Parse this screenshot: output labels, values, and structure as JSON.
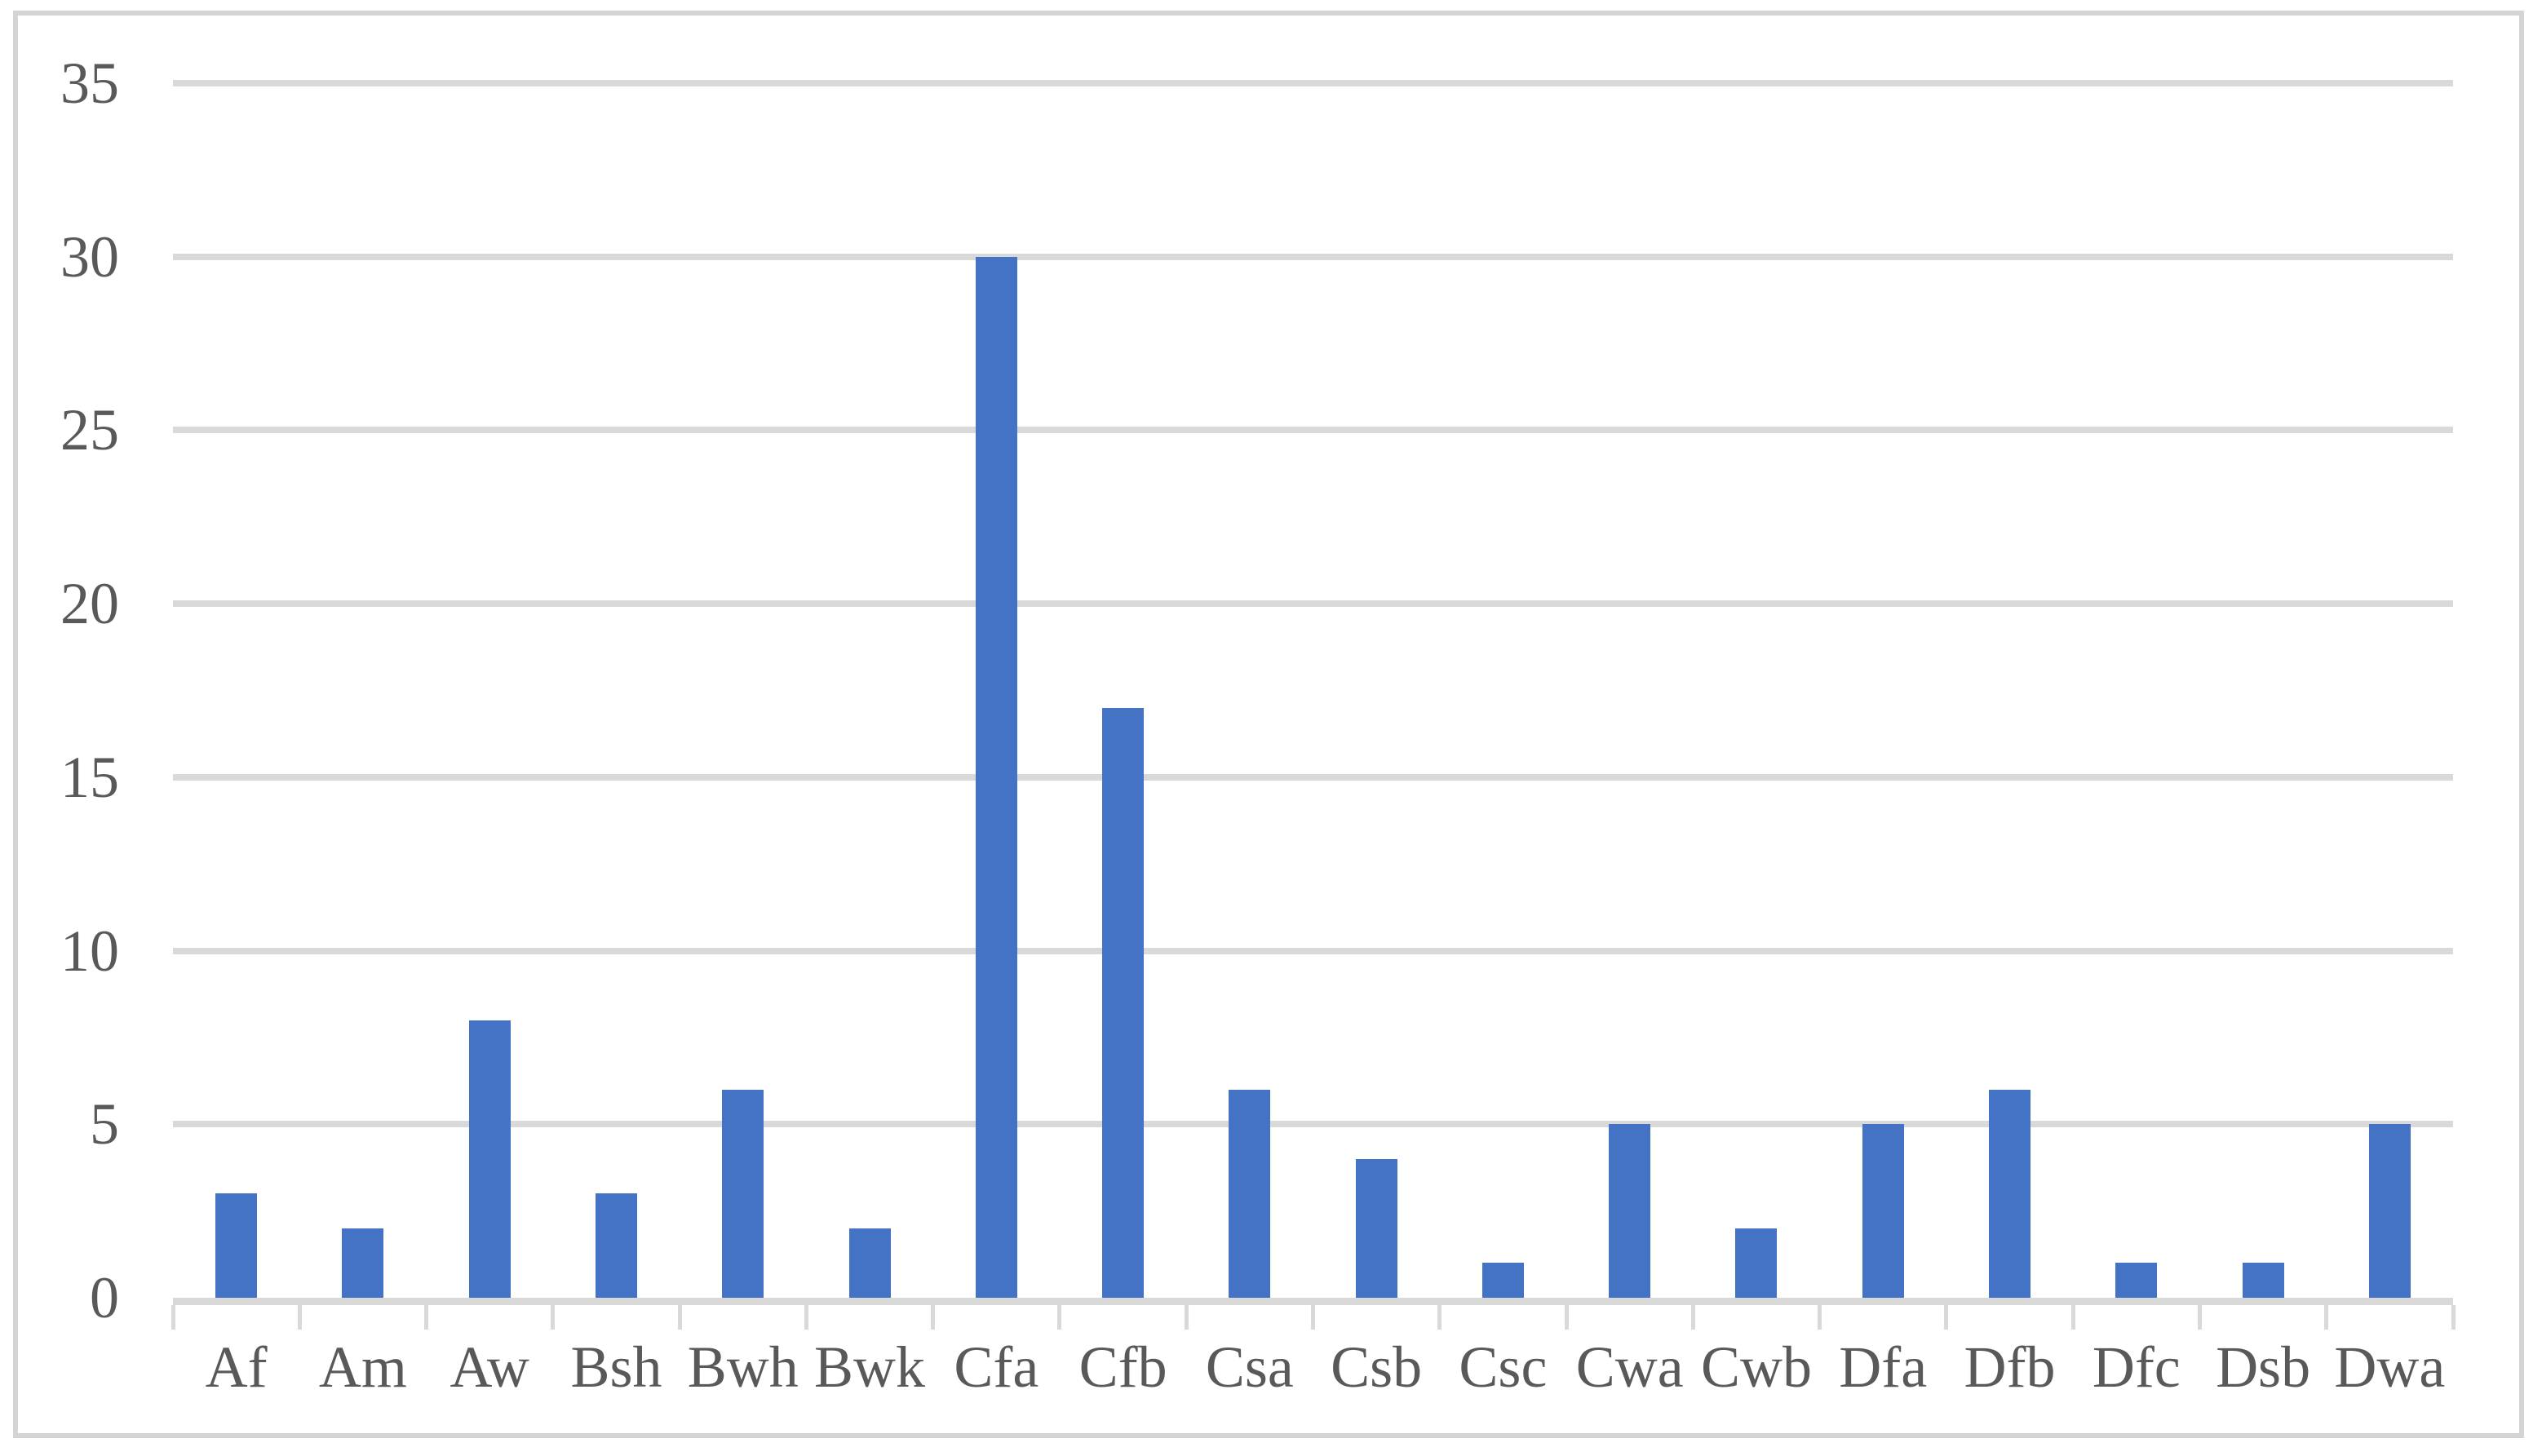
{
  "figure": {
    "background_color": "#ffffff",
    "border_color": "#d4d4d4"
  },
  "chart_data": {
    "type": "bar",
    "title": "",
    "xlabel": "",
    "ylabel": "",
    "categories": [
      "Af",
      "Am",
      "Aw",
      "Bsh",
      "Bwh",
      "Bwk",
      "Cfa",
      "Cfb",
      "Csa",
      "Csb",
      "Csc",
      "Cwa",
      "Cwb",
      "Dfa",
      "Dfb",
      "Dfc",
      "Dsb",
      "Dwa"
    ],
    "values": [
      3,
      2,
      8,
      3,
      6,
      2,
      30,
      17,
      6,
      4,
      1,
      5,
      2,
      5,
      6,
      1,
      1,
      5
    ],
    "ylim": [
      0,
      35
    ],
    "yticks": [
      0,
      5,
      10,
      15,
      20,
      25,
      30,
      35
    ],
    "grid": "horizontal",
    "legend": "none",
    "bar_color": "#4472c4",
    "gridline_color": "#d9d9d9",
    "axis_line_color": "#d9d9d9",
    "tick_label_color": "#595959"
  }
}
